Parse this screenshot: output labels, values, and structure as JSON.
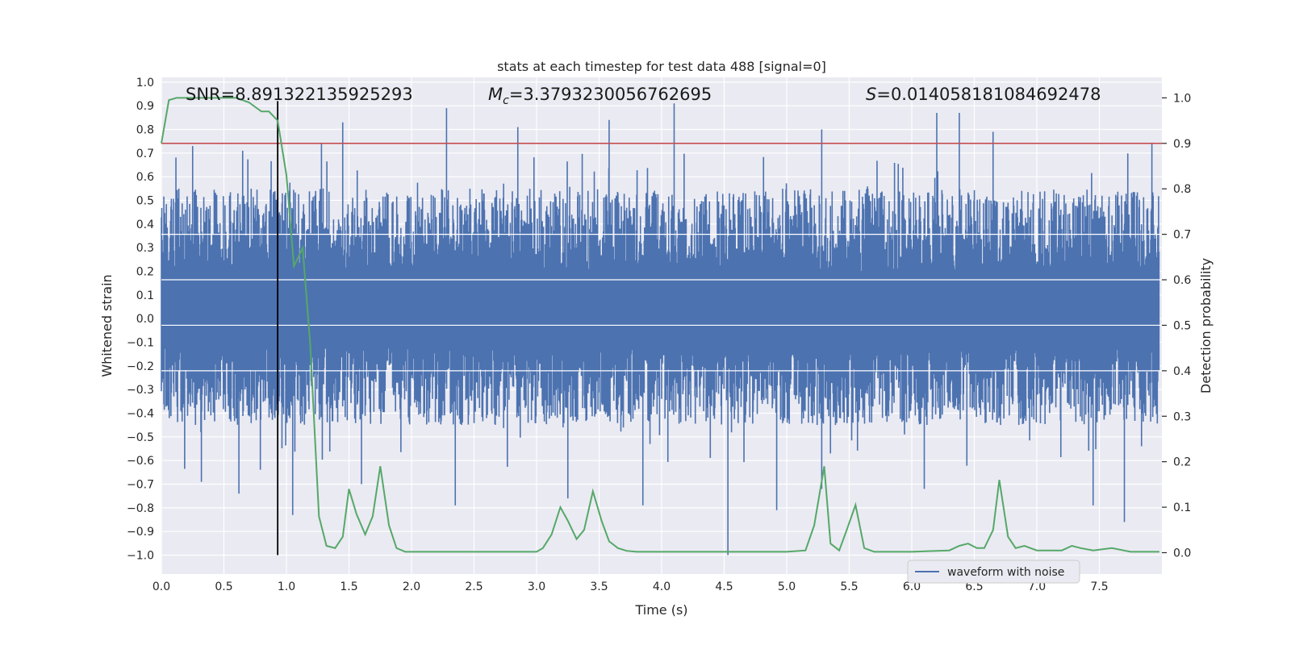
{
  "chart_data": {
    "type": "line",
    "title": "stats at each timestep for test data 488 [signal=0]",
    "xlabel": "Time (s)",
    "ylabel_left": "Whitened strain",
    "ylabel_right": "Detection probability",
    "xlim": [
      0.0,
      8.0
    ],
    "ylim_left": [
      -1.08,
      1.02
    ],
    "ylim_right": [
      -0.047,
      1.045
    ],
    "x_ticks": [
      0.0,
      0.5,
      1.0,
      1.5,
      2.0,
      2.5,
      3.0,
      3.5,
      4.0,
      4.5,
      5.0,
      5.5,
      6.0,
      6.5,
      7.0,
      7.5
    ],
    "x_tick_labels": [
      "0.0",
      "0.5",
      "1.0",
      "1.5",
      "2.0",
      "2.5",
      "3.0",
      "3.5",
      "4.0",
      "4.5",
      "5.0",
      "5.5",
      "6.0",
      "6.5",
      "7.0",
      "7.5"
    ],
    "y_left_ticks": [
      1.0,
      0.9,
      0.8,
      0.7,
      0.6,
      0.5,
      0.4,
      0.3,
      0.2,
      0.1,
      0.0,
      -0.1,
      -0.2,
      -0.3,
      -0.4,
      -0.5,
      -0.6,
      -0.7,
      -0.8,
      -0.9,
      -1.0
    ],
    "y_left_tick_labels": [
      "1.0",
      "0.9",
      "0.8",
      "0.7",
      "0.6",
      "0.5",
      "0.4",
      "0.3",
      "0.2",
      "0.1",
      "0.0",
      "−0.1",
      "−0.2",
      "−0.3",
      "−0.4",
      "−0.5",
      "−0.6",
      "−0.7",
      "−0.8",
      "−0.9",
      "−1.0"
    ],
    "y_right_ticks": [
      1.0,
      0.9,
      0.8,
      0.7,
      0.6,
      0.5,
      0.4,
      0.3,
      0.2,
      0.1,
      0.0
    ],
    "y_right_tick_labels": [
      "1.0",
      "0.9",
      "0.8",
      "0.7",
      "0.6",
      "0.5",
      "0.4",
      "0.3",
      "0.2",
      "0.1",
      "0.0"
    ],
    "grid": true,
    "legend": {
      "position": "lower-right",
      "entries": [
        "waveform with noise"
      ]
    },
    "annotations": {
      "snr": "SNR=8.891322135925293",
      "mc_symbol": "M",
      "mc_sub": "c",
      "mc_value": "=3.3793230056762695",
      "s_symbol": "S",
      "s_value": "=0.014058181084692478"
    },
    "threshold_right": 0.9,
    "vertical_marker": {
      "x": 0.93,
      "y_from": -1.0,
      "y_to": 0.92
    },
    "waveform": {
      "name": "waveform with noise",
      "color": "#4c72b0",
      "typical_range": [
        -0.45,
        0.55
      ],
      "spikes_up": [
        [
          1.45,
          0.83
        ],
        [
          2.28,
          0.89
        ],
        [
          2.85,
          0.81
        ],
        [
          3.58,
          0.84
        ],
        [
          4.1,
          0.91
        ],
        [
          5.28,
          0.8
        ],
        [
          6.2,
          0.87
        ],
        [
          6.38,
          0.87
        ],
        [
          6.65,
          0.79
        ],
        [
          7.92,
          0.74
        ],
        [
          1.28,
          0.74
        ],
        [
          0.65,
          0.71
        ],
        [
          0.25,
          0.73
        ]
      ],
      "spikes_down": [
        [
          0.32,
          -0.69
        ],
        [
          0.62,
          -0.74
        ],
        [
          1.05,
          -0.83
        ],
        [
          1.6,
          -0.7
        ],
        [
          2.35,
          -0.79
        ],
        [
          3.25,
          -0.76
        ],
        [
          3.85,
          -0.79
        ],
        [
          4.53,
          -1.0
        ],
        [
          4.92,
          -0.81
        ],
        [
          5.28,
          -0.72
        ],
        [
          6.1,
          -0.72
        ],
        [
          7.45,
          -0.79
        ],
        [
          7.7,
          -0.86
        ]
      ]
    },
    "probability": {
      "color": "#55a868",
      "x": [
        0.0,
        0.06,
        0.12,
        0.6,
        0.7,
        0.8,
        0.86,
        0.93,
        1.0,
        1.06,
        1.13,
        1.19,
        1.26,
        1.32,
        1.39,
        1.45,
        1.5,
        1.56,
        1.63,
        1.69,
        1.75,
        1.82,
        1.88,
        1.95,
        2.0,
        2.5,
        3.0,
        3.05,
        3.12,
        3.19,
        3.25,
        3.32,
        3.38,
        3.45,
        3.52,
        3.58,
        3.65,
        3.72,
        3.8,
        4.0,
        4.5,
        5.0,
        5.15,
        5.22,
        5.3,
        5.35,
        5.42,
        5.48,
        5.55,
        5.62,
        5.7,
        6.0,
        6.3,
        6.38,
        6.45,
        6.52,
        6.58,
        6.65,
        6.7,
        6.77,
        6.83,
        6.9,
        7.0,
        7.2,
        7.28,
        7.35,
        7.45,
        7.6,
        7.75,
        7.98
      ],
      "y": [
        0.9,
        0.995,
        1.0,
        1.0,
        0.99,
        0.97,
        0.97,
        0.95,
        0.83,
        0.63,
        0.67,
        0.46,
        0.08,
        0.015,
        0.01,
        0.035,
        0.14,
        0.085,
        0.04,
        0.08,
        0.19,
        0.06,
        0.01,
        0.002,
        0.002,
        0.002,
        0.002,
        0.01,
        0.04,
        0.1,
        0.07,
        0.03,
        0.05,
        0.135,
        0.07,
        0.025,
        0.01,
        0.004,
        0.002,
        0.002,
        0.002,
        0.002,
        0.005,
        0.06,
        0.19,
        0.02,
        0.005,
        0.05,
        0.105,
        0.01,
        0.002,
        0.002,
        0.005,
        0.015,
        0.02,
        0.01,
        0.01,
        0.05,
        0.16,
        0.035,
        0.01,
        0.015,
        0.005,
        0.005,
        0.015,
        0.01,
        0.005,
        0.01,
        0.002,
        0.002
      ]
    },
    "colors": {
      "background": "#eaeaf2",
      "grid": "#ffffff",
      "threshold": "#c44e52",
      "marker": "#000000"
    }
  }
}
